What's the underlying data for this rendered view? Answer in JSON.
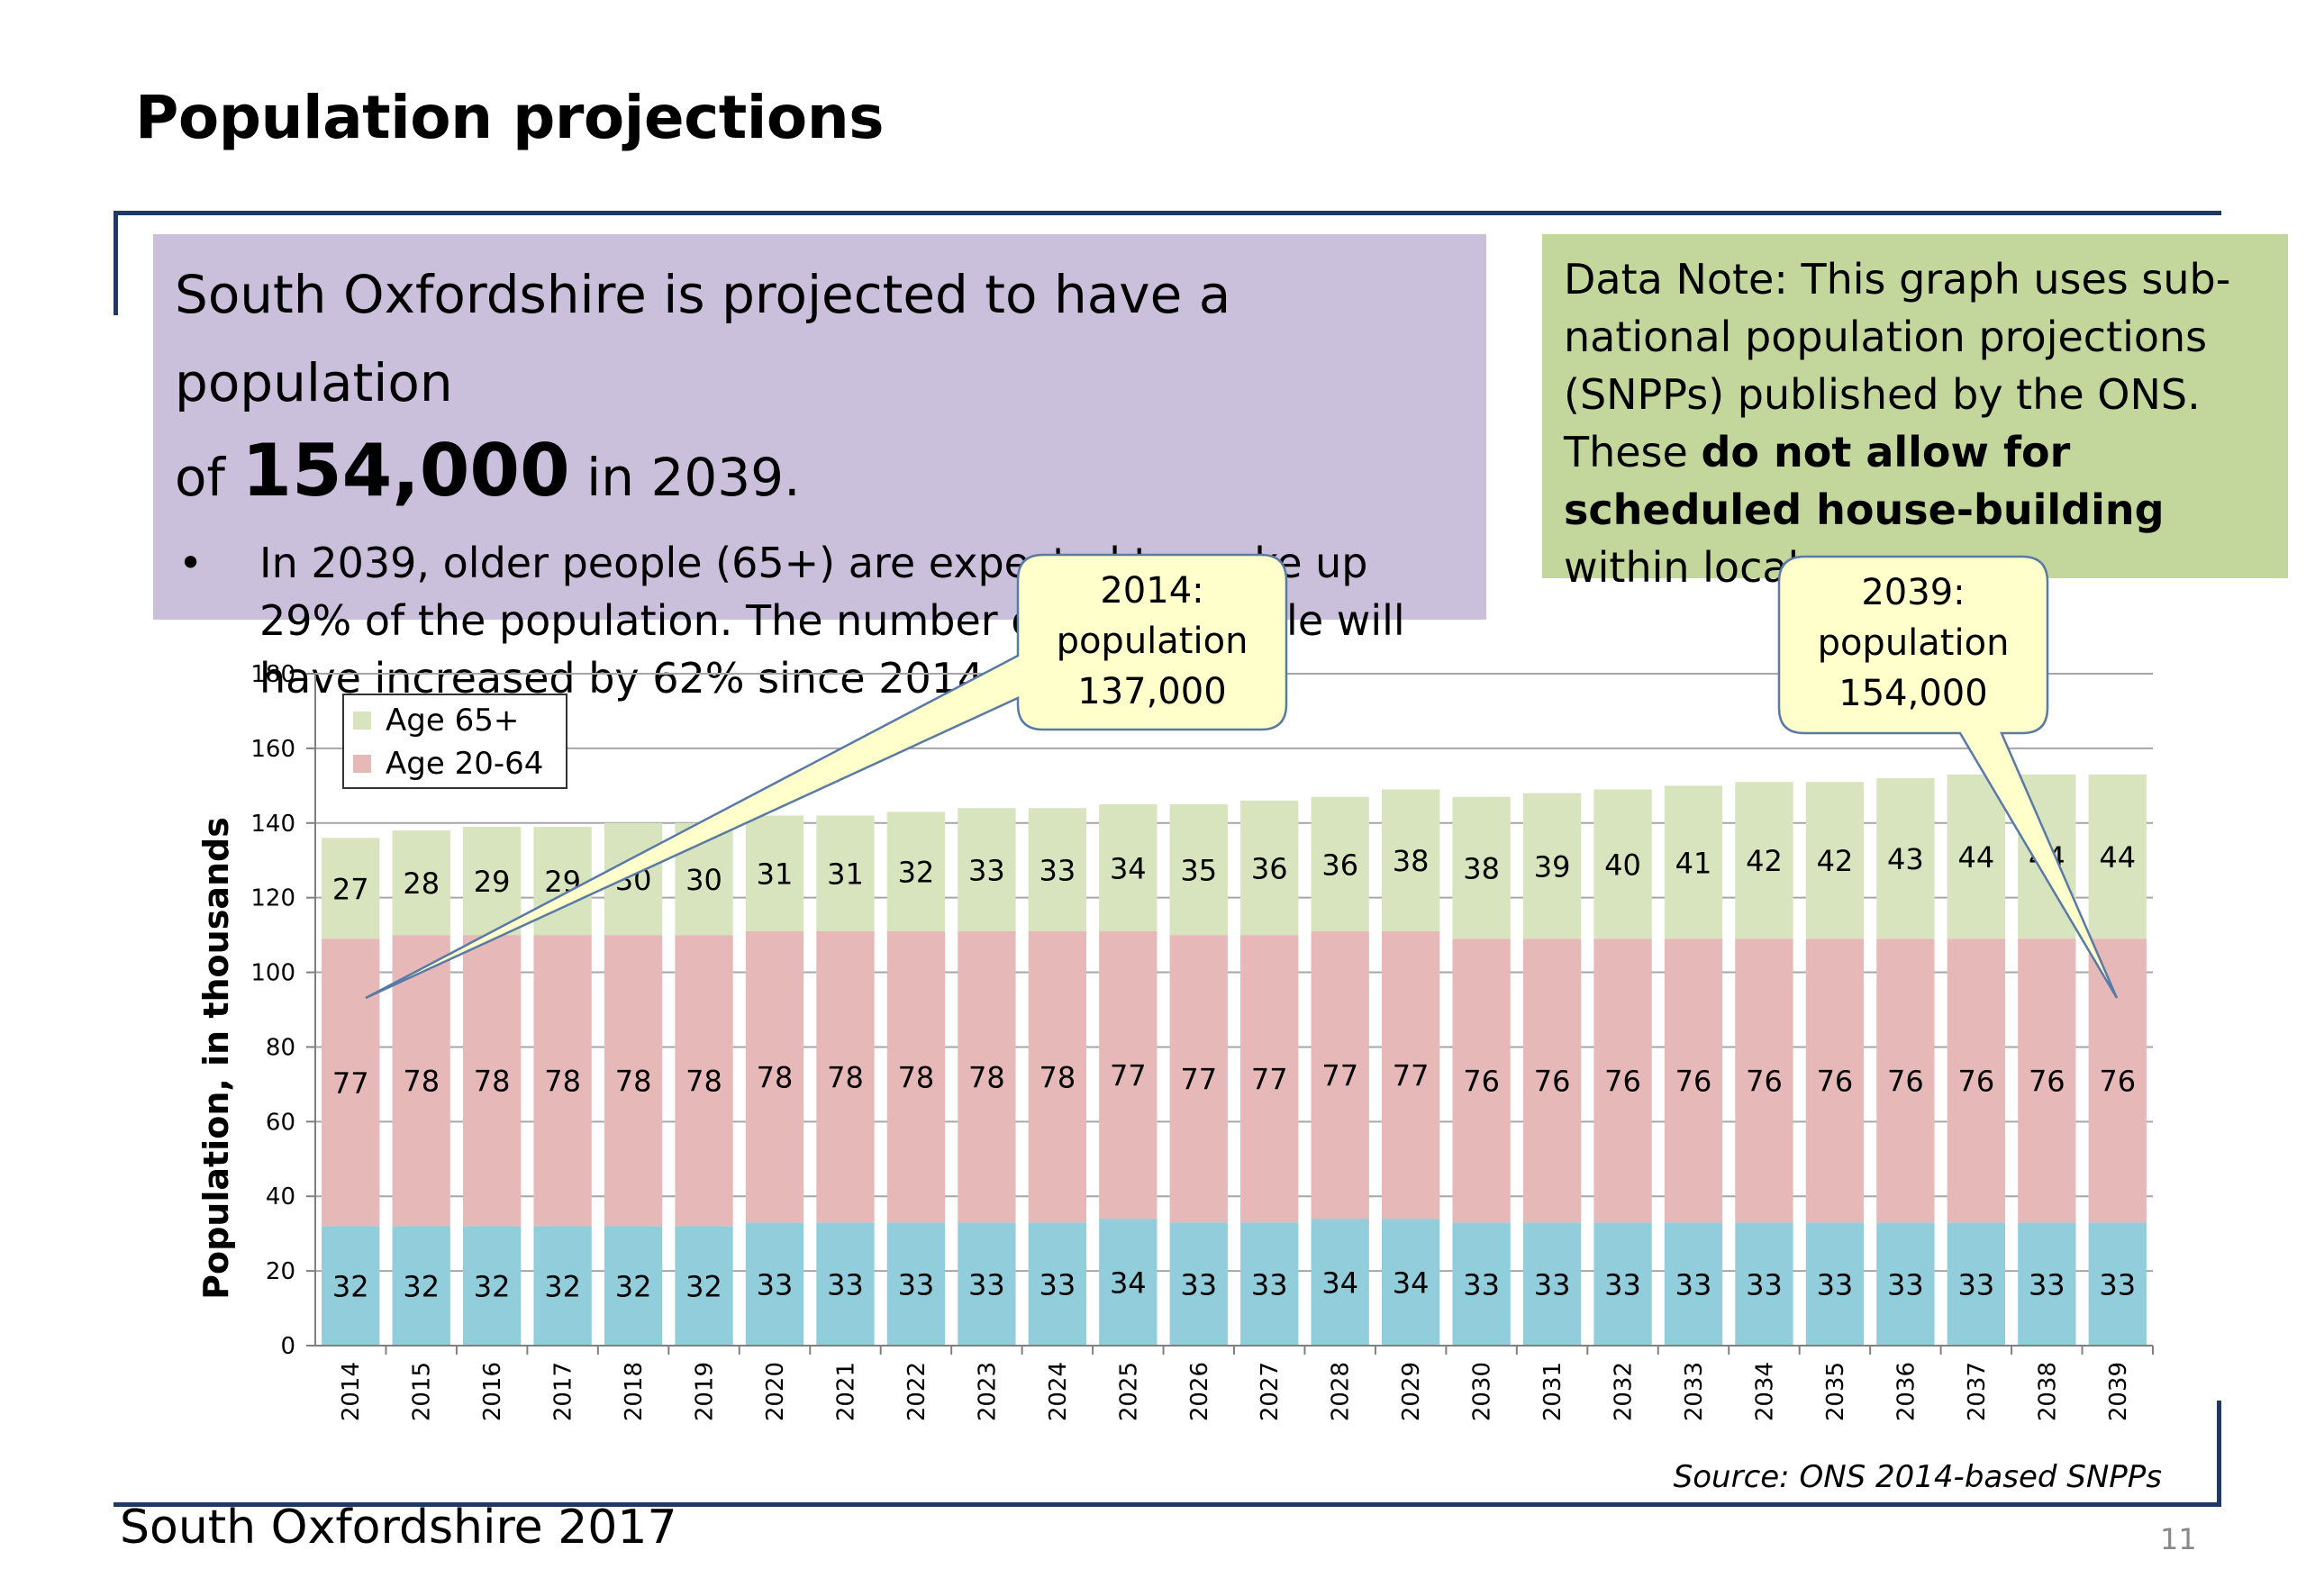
{
  "slide": {
    "title": "Population projections",
    "summary": {
      "line1": "South Oxfordshire is projected to have a population",
      "line2_prefix": "of",
      "line2_value": "154,000",
      "line2_suffix": "in 2039.",
      "bullet_symbol": "•",
      "bullet_text": "In 2039, older people (65+) are expected to make up 29% of the population.  The number of older people will have increased by 62% since 2014."
    },
    "data_note": {
      "text1": "Data Note: This graph uses sub-national population projections (SNPPs) published by the ONS. These",
      "bold": "do not allow for scheduled house-building",
      "text2": "within local areas."
    },
    "callout_2014": {
      "line1": "2014:",
      "line2": "population",
      "line3": "137,000"
    },
    "callout_2039": {
      "line1": "2039:",
      "line2": "population",
      "line3": "154,000"
    },
    "source": "Source: ONS 2014-based SNPPs",
    "footer": "South Oxfordshire  2017",
    "page_number": "11"
  },
  "colors": {
    "age_0_19": "#92cddc",
    "age_20_64": "#e6b9b8",
    "age_65_plus": "#d7e4bd",
    "summary_box": "#cbc0dc",
    "note_box": "#c3d69b",
    "callout_fill": "#ffffcc",
    "rule": "#1f3864"
  },
  "chart_data": {
    "type": "bar",
    "stacked": true,
    "ylabel": "Population, in thousands",
    "ylim": [
      0,
      180
    ],
    "yticks": [
      0,
      20,
      40,
      60,
      80,
      100,
      120,
      140,
      160,
      180
    ],
    "grid": true,
    "legend_position": "top-left",
    "categories": [
      "2014",
      "2015",
      "2016",
      "2017",
      "2018",
      "2019",
      "2020",
      "2021",
      "2022",
      "2023",
      "2024",
      "2025",
      "2026",
      "2027",
      "2028",
      "2029",
      "2030",
      "2031",
      "2032",
      "2033",
      "2034",
      "2035",
      "2036",
      "2037",
      "2038",
      "2039"
    ],
    "series": [
      {
        "values": [
          32,
          32,
          32,
          32,
          32,
          32,
          33,
          33,
          33,
          33,
          33,
          34,
          33,
          33,
          34,
          34,
          33,
          33,
          33,
          33,
          33,
          33,
          33,
          33,
          33,
          33
        ]
      },
      {
        "name": "Age 20-64",
        "values": [
          77,
          78,
          78,
          78,
          78,
          78,
          78,
          78,
          78,
          78,
          78,
          77,
          77,
          77,
          77,
          77,
          76,
          76,
          76,
          76,
          76,
          76,
          76,
          76,
          76,
          76
        ]
      },
      {
        "name": "Age 65+",
        "values": [
          27,
          28,
          29,
          29,
          30,
          30,
          31,
          31,
          32,
          33,
          33,
          34,
          35,
          36,
          36,
          38,
          38,
          39,
          40,
          41,
          42,
          42,
          43,
          44,
          44,
          44
        ]
      }
    ]
  }
}
